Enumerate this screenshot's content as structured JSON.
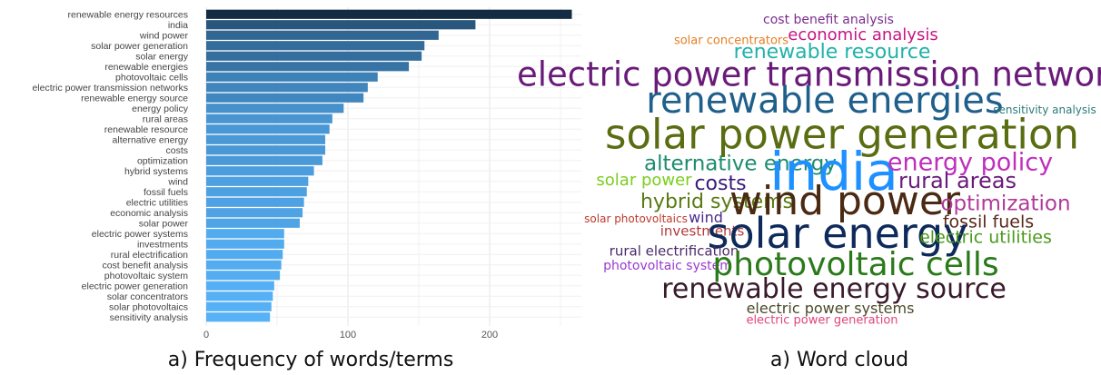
{
  "captions": {
    "left": "a) Frequency of words/terms",
    "right": "a) Word cloud"
  },
  "chart_data": {
    "type": "bar",
    "orientation": "horizontal",
    "title": "",
    "xlabel": "",
    "ylabel": "",
    "xlim": [
      0,
      260
    ],
    "xticks": [
      0,
      100,
      200
    ],
    "grid": true,
    "color_gradient": [
      "#132b43",
      "#56b1f7"
    ],
    "categories": [
      "renewable energy resources",
      "india",
      "wind power",
      "solar power generation",
      "solar energy",
      "renewable energies",
      "photovoltaic cells",
      "electric power transmission networks",
      "renewable energy source",
      "energy policy",
      "rural areas",
      "renewable resource",
      "alternative energy",
      "costs",
      "optimization",
      "hybrid systems",
      "wind",
      "fossil fuels",
      "electric utilities",
      "economic analysis",
      "solar power",
      "electric power systems",
      "investments",
      "rural electrification",
      "cost benefit analysis",
      "photovoltaic system",
      "electric power generation",
      "solar concentrators",
      "solar photovoltaics",
      "sensitivity analysis"
    ],
    "values": [
      258,
      190,
      164,
      154,
      152,
      143,
      121,
      114,
      111,
      97,
      89,
      87,
      84,
      84,
      82,
      76,
      72,
      71,
      69,
      68,
      66,
      55,
      55,
      54,
      53,
      52,
      48,
      47,
      46,
      45
    ]
  },
  "word_cloud": {
    "words": [
      {
        "text": "cost benefit analysis",
        "color": "#7b2d8e"
      },
      {
        "text": "solar concentrators",
        "color": "#e67e22"
      },
      {
        "text": "economic analysis",
        "color": "#c71585"
      },
      {
        "text": "renewable resource",
        "color": "#20b2aa"
      },
      {
        "text": "electric power transmission networks",
        "color": "#6a1b7a"
      },
      {
        "text": "renewable energies",
        "color": "#1f5f8b"
      },
      {
        "text": "sensitivity analysis",
        "color": "#2a7a78"
      },
      {
        "text": "solar power generation",
        "color": "#5a6d12"
      },
      {
        "text": "alternative energy",
        "color": "#1e8c6e"
      },
      {
        "text": "india",
        "color": "#1e90ff"
      },
      {
        "text": "energy policy",
        "color": "#c02fbd"
      },
      {
        "text": "solar power",
        "color": "#7ccd1f"
      },
      {
        "text": "costs",
        "color": "#3a1a7a"
      },
      {
        "text": "rural areas",
        "color": "#6a1b7a"
      },
      {
        "text": "hybrid systems",
        "color": "#5a7a12"
      },
      {
        "text": "wind power",
        "color": "#4a2a12"
      },
      {
        "text": "optimization",
        "color": "#b03a9a"
      },
      {
        "text": "solar photovoltaics",
        "color": "#c0392b"
      },
      {
        "text": "wind",
        "color": "#4b2a8c"
      },
      {
        "text": "investments",
        "color": "#b23a3a"
      },
      {
        "text": "fossil fuels",
        "color": "#5a2a1a"
      },
      {
        "text": "solar energy",
        "color": "#0e2a5a"
      },
      {
        "text": "electric utilities",
        "color": "#4a9a1a"
      },
      {
        "text": "rural electrification",
        "color": "#4a2a6a"
      },
      {
        "text": "photovoltaic system",
        "color": "#9a3acd"
      },
      {
        "text": "photovoltaic cells",
        "color": "#2a7a1a"
      },
      {
        "text": "renewable energy source",
        "color": "#3a1a2a"
      },
      {
        "text": "electric power systems",
        "color": "#4a4a2a"
      },
      {
        "text": "electric power generation",
        "color": "#e0457b"
      }
    ]
  }
}
